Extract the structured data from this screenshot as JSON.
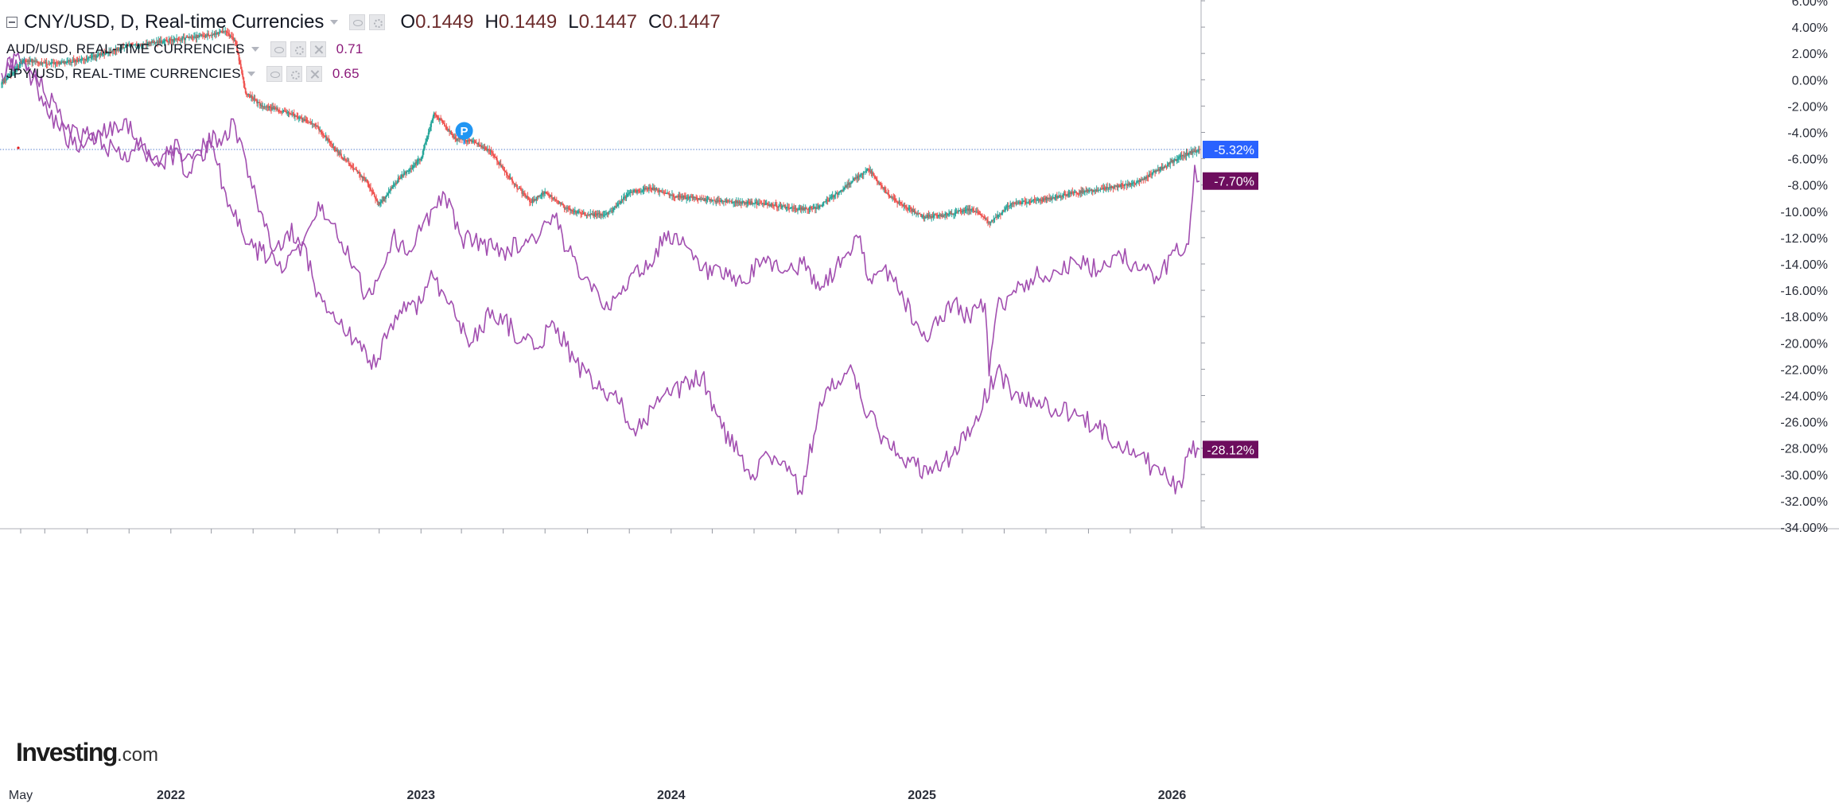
{
  "legend": {
    "main": {
      "symbol": "CNY/USD, D, Real-time Currencies",
      "open_label": "O",
      "open": "0.1449",
      "high_label": "H",
      "high": "0.1449",
      "low_label": "L",
      "low": "0.1447",
      "close_label": "C",
      "close": "0.1447"
    },
    "compare": [
      {
        "symbol": "AUD/USD, REAL-TIME CURRENCIES",
        "value": "0.71"
      },
      {
        "symbol": "JPY/USD, REAL-TIME CURRENCIES",
        "value": "0.65"
      }
    ]
  },
  "logo": {
    "brand": "Investing",
    "suffix": ".com"
  },
  "colors": {
    "up": "#26a69a",
    "down": "#ef5350",
    "compare_line": "#a24fb0",
    "cny_badge": "#2962ff",
    "compare_badge": "#6d0d5e",
    "price_line": "#7b9bd8"
  },
  "chart_data": {
    "type": "line",
    "title": "",
    "xlabel": "",
    "ylabel": "",
    "ylim": [
      -34,
      6
    ],
    "y_ticks": [
      "6.00%",
      "4.00%",
      "2.00%",
      "0.00%",
      "-2.00%",
      "-4.00%",
      "-6.00%",
      "-8.00%",
      "-10.00%",
      "-12.00%",
      "-14.00%",
      "-16.00%",
      "-18.00%",
      "-20.00%",
      "-22.00%",
      "-24.00%",
      "-26.00%",
      "-28.00%",
      "-30.00%",
      "-32.00%",
      "-34.00%"
    ],
    "x_tick_labels": [
      {
        "date": "2021-05-01",
        "label": "May"
      },
      {
        "date": "2022-01-01",
        "label": "2022"
      },
      {
        "date": "2023-01-01",
        "label": "2023"
      },
      {
        "date": "2024-01-01",
        "label": "2024"
      },
      {
        "date": "2025-01-01",
        "label": "2025"
      },
      {
        "date": "2026-01-01",
        "label": "2026"
      }
    ],
    "x_range": [
      "2021-04-29",
      "2026-02-10"
    ],
    "grid": false,
    "last_value_labels": [
      "-5.32%",
      "-7.70%",
      "-28.12%"
    ],
    "marker": {
      "label": "P",
      "date": "2023-03-05",
      "value": -4.0
    },
    "series": [
      {
        "name": "CNY/USD",
        "style": "candlestick",
        "x": [
          "2021-04-29",
          "2021-06-01",
          "2021-07-15",
          "2021-09-01",
          "2021-11-01",
          "2022-01-01",
          "2022-02-25",
          "2022-03-20",
          "2022-04-05",
          "2022-04-20",
          "2022-05-15",
          "2022-06-20",
          "2022-08-01",
          "2022-09-01",
          "2022-10-10",
          "2022-11-01",
          "2022-11-30",
          "2023-01-01",
          "2023-01-20",
          "2023-02-20",
          "2023-03-20",
          "2023-04-15",
          "2023-05-10",
          "2023-06-10",
          "2023-07-01",
          "2023-08-01",
          "2023-09-01",
          "2023-10-01",
          "2023-11-01",
          "2023-12-01",
          "2024-01-01",
          "2024-02-01",
          "2024-03-01",
          "2024-04-01",
          "2024-05-15",
          "2024-07-01",
          "2024-08-01",
          "2024-09-01",
          "2024-09-25",
          "2024-10-15",
          "2024-11-15",
          "2025-01-01",
          "2025-02-01",
          "2025-03-15",
          "2025-04-10",
          "2025-05-10",
          "2025-06-10",
          "2025-07-10",
          "2025-08-10",
          "2025-09-10",
          "2025-10-10",
          "2025-11-10",
          "2025-12-10",
          "2026-01-15",
          "2026-02-10"
        ],
        "y": [
          -0.3,
          1.5,
          1.2,
          1.6,
          2.6,
          3.0,
          3.4,
          3.7,
          2.9,
          -1.0,
          -2.0,
          -2.5,
          -3.5,
          -5.5,
          -7.5,
          -9.5,
          -7.5,
          -6.0,
          -2.5,
          -4.5,
          -4.7,
          -5.6,
          -7.5,
          -9.3,
          -8.5,
          -9.8,
          -10.3,
          -10.2,
          -8.6,
          -8.2,
          -8.8,
          -9.0,
          -9.2,
          -9.3,
          -9.4,
          -9.8,
          -9.7,
          -8.6,
          -7.5,
          -6.8,
          -8.9,
          -10.4,
          -10.3,
          -9.8,
          -10.9,
          -9.5,
          -9.2,
          -9.0,
          -8.6,
          -8.4,
          -8.1,
          -7.8,
          -6.9,
          -5.8,
          -5.3
        ]
      },
      {
        "name": "AUD/USD",
        "style": "line",
        "x": [
          "2021-04-29",
          "2021-05-20",
          "2021-06-20",
          "2021-07-20",
          "2021-08-20",
          "2021-09-20",
          "2021-10-25",
          "2021-12-03",
          "2022-01-01",
          "2022-01-28",
          "2022-02-20",
          "2022-04-05",
          "2022-05-12",
          "2022-06-01",
          "2022-06-20",
          "2022-07-15",
          "2022-08-10",
          "2022-09-01",
          "2022-10-01",
          "2022-10-12",
          "2022-11-01",
          "2022-11-20",
          "2022-12-15",
          "2023-01-01",
          "2023-02-02",
          "2023-03-01",
          "2023-04-01",
          "2023-05-01",
          "2023-06-15",
          "2023-07-15",
          "2023-08-01",
          "2023-09-01",
          "2023-10-05",
          "2023-11-01",
          "2023-12-01",
          "2023-12-28",
          "2024-01-15",
          "2024-02-15",
          "2024-03-15",
          "2024-04-19",
          "2024-05-15",
          "2024-06-15",
          "2024-07-10",
          "2024-08-05",
          "2024-09-10",
          "2024-09-30",
          "2024-10-20",
          "2024-11-15",
          "2025-01-01",
          "2025-01-15",
          "2025-02-15",
          "2025-03-10",
          "2025-04-03",
          "2025-04-09",
          "2025-04-20",
          "2025-05-15",
          "2025-06-15",
          "2025-07-15",
          "2025-08-15",
          "2025-09-15",
          "2025-10-15",
          "2025-11-15",
          "2025-12-15",
          "2026-01-05",
          "2026-01-25",
          "2026-02-03",
          "2026-02-10"
        ],
        "y": [
          0.5,
          1.8,
          -0.5,
          -3.5,
          -5.5,
          -4.0,
          -3.0,
          -6.0,
          -5.5,
          -7.0,
          -5.0,
          -3.5,
          -10.0,
          -13.0,
          -11.5,
          -12.0,
          -9.5,
          -12.0,
          -14.5,
          -16.5,
          -15.0,
          -12.0,
          -13.0,
          -11.5,
          -8.5,
          -12.0,
          -12.5,
          -13.0,
          -12.0,
          -10.5,
          -13.0,
          -15.0,
          -17.5,
          -15.0,
          -14.0,
          -11.5,
          -12.5,
          -14.5,
          -15.0,
          -15.5,
          -13.5,
          -14.5,
          -14.0,
          -16.0,
          -13.5,
          -12.0,
          -15.5,
          -14.5,
          -19.5,
          -19.0,
          -17.0,
          -18.0,
          -17.0,
          -22.5,
          -17.5,
          -16.0,
          -15.0,
          -14.5,
          -14.0,
          -14.5,
          -13.0,
          -14.5,
          -15.0,
          -13.0,
          -12.5,
          -6.5,
          -7.7
        ]
      },
      {
        "name": "JPY/USD",
        "style": "line",
        "x": [
          "2021-04-29",
          "2021-05-20",
          "2021-06-20",
          "2021-07-20",
          "2021-08-20",
          "2021-09-10",
          "2021-10-20",
          "2021-11-15",
          "2021-12-20",
          "2022-01-01",
          "2022-02-01",
          "2022-03-01",
          "2022-03-28",
          "2022-04-20",
          "2022-05-25",
          "2022-06-15",
          "2022-07-15",
          "2022-08-01",
          "2022-09-01",
          "2022-10-01",
          "2022-10-21",
          "2022-11-15",
          "2022-12-01",
          "2023-01-01",
          "2023-01-16",
          "2023-02-20",
          "2023-03-15",
          "2023-04-15",
          "2023-05-15",
          "2023-06-15",
          "2023-07-14",
          "2023-08-15",
          "2023-09-15",
          "2023-10-15",
          "2023-11-13",
          "2023-12-15",
          "2024-01-01",
          "2024-02-15",
          "2024-03-15",
          "2024-04-29",
          "2024-05-15",
          "2024-06-15",
          "2024-07-10",
          "2024-08-05",
          "2024-09-16",
          "2024-10-15",
          "2024-11-15",
          "2025-01-10",
          "2025-02-15",
          "2025-03-15",
          "2025-04-21",
          "2025-05-15",
          "2025-06-15",
          "2025-07-15",
          "2025-08-15",
          "2025-09-15",
          "2025-10-15",
          "2025-11-15",
          "2025-12-15",
          "2026-01-15",
          "2026-01-26",
          "2026-02-10"
        ],
        "y": [
          0.0,
          1.5,
          0.0,
          -2.5,
          -4.5,
          -4.0,
          -6.0,
          -5.0,
          -6.5,
          -5.0,
          -6.0,
          -5.0,
          -9.5,
          -12.5,
          -13.5,
          -14.5,
          -12.5,
          -16.5,
          -18.5,
          -20.0,
          -22.0,
          -19.0,
          -17.5,
          -17.0,
          -14.5,
          -18.0,
          -20.0,
          -17.5,
          -19.0,
          -20.5,
          -18.5,
          -21.5,
          -23.5,
          -24.5,
          -26.5,
          -24.5,
          -24.0,
          -22.5,
          -26.5,
          -30.0,
          -28.5,
          -29.0,
          -31.5,
          -24.5,
          -22.0,
          -25.5,
          -28.0,
          -30.0,
          -28.5,
          -26.5,
          -22.0,
          -24.0,
          -24.5,
          -25.0,
          -25.5,
          -26.5,
          -27.5,
          -28.5,
          -30.0,
          -31.0,
          -28.0,
          -28.1
        ]
      }
    ]
  }
}
